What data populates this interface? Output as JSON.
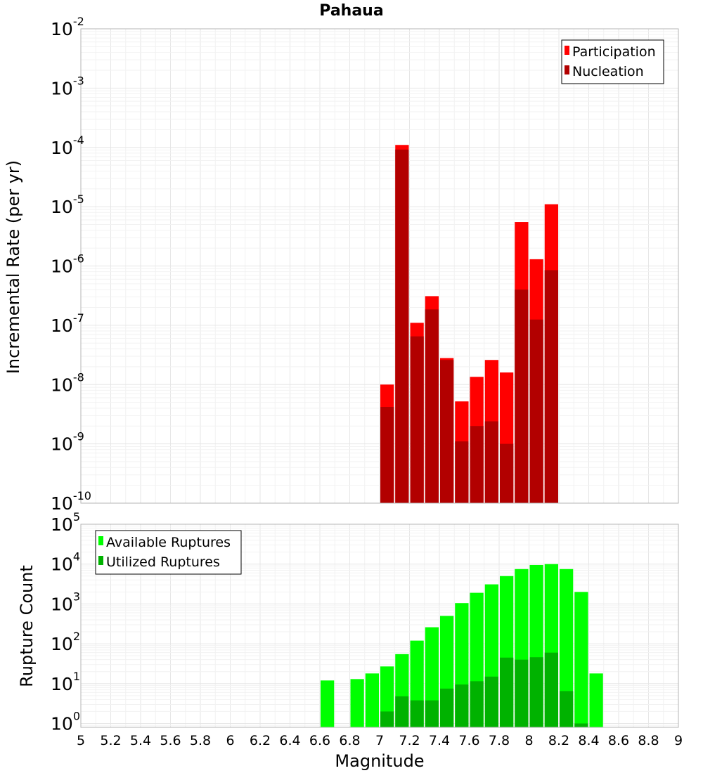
{
  "chart_data": [
    {
      "type": "bar",
      "title": "Pahaua",
      "ylabel": "Incremental Rate (per yr)",
      "xlabel": "",
      "yscale": "log",
      "ylim": [
        1e-10,
        0.01
      ],
      "xlim": [
        5,
        9
      ],
      "grid": true,
      "legend_position": "top-right",
      "bar_width": 0.1,
      "ytick_labels": [
        {
          "base": "10",
          "exp": "-10"
        },
        {
          "base": "10",
          "exp": "-9"
        },
        {
          "base": "10",
          "exp": "-8"
        },
        {
          "base": "10",
          "exp": "-7"
        },
        {
          "base": "10",
          "exp": "-6"
        },
        {
          "base": "10",
          "exp": "-5"
        },
        {
          "base": "10",
          "exp": "-4"
        },
        {
          "base": "10",
          "exp": "-3"
        },
        {
          "base": "10",
          "exp": "-2"
        }
      ],
      "series": [
        {
          "name": "Participation",
          "color": "#ff0000",
          "x": [
            7.05,
            7.15,
            7.25,
            7.35,
            7.45,
            7.55,
            7.65,
            7.75,
            7.85,
            7.95,
            8.05,
            8.15
          ],
          "values": [
            1e-08,
            0.00011,
            1.1e-07,
            3.1e-07,
            2.8e-08,
            5.2e-09,
            1.35e-08,
            2.6e-08,
            1.6e-08,
            5.5e-06,
            1.3e-06,
            1.1e-05
          ]
        },
        {
          "name": "Nucleation",
          "color": "#b20000",
          "x": [
            7.05,
            7.15,
            7.25,
            7.35,
            7.45,
            7.55,
            7.65,
            7.75,
            7.85,
            7.95,
            8.05,
            8.15
          ],
          "values": [
            4.2e-09,
            9.2e-05,
            6.5e-08,
            1.85e-07,
            2.6e-08,
            1.1e-09,
            2e-09,
            2.4e-09,
            1e-09,
            4e-07,
            1.25e-07,
            8.5e-07
          ]
        }
      ]
    },
    {
      "type": "bar",
      "ylabel": "Rupture Count",
      "xlabel": "Magnitude",
      "yscale": "log",
      "ylim": [
        0.8,
        100000
      ],
      "xlim": [
        5,
        9
      ],
      "grid": true,
      "legend_position": "top-left",
      "bar_width": 0.1,
      "xticks": [
        "5",
        "5.2",
        "5.4",
        "5.6",
        "5.8",
        "6",
        "6.2",
        "6.4",
        "6.6",
        "6.8",
        "7",
        "7.2",
        "7.4",
        "7.6",
        "7.8",
        "8",
        "8.2",
        "8.4",
        "8.6",
        "8.8",
        "9"
      ],
      "ytick_labels": [
        {
          "base": "10",
          "exp": "0"
        },
        {
          "base": "10",
          "exp": "1"
        },
        {
          "base": "10",
          "exp": "2"
        },
        {
          "base": "10",
          "exp": "3"
        },
        {
          "base": "10",
          "exp": "4"
        },
        {
          "base": "10",
          "exp": "5"
        }
      ],
      "series": [
        {
          "name": "Available Ruptures",
          "color": "#00ff00",
          "x": [
            6.65,
            6.85,
            6.95,
            7.05,
            7.15,
            7.25,
            7.35,
            7.45,
            7.55,
            7.65,
            7.75,
            7.85,
            7.95,
            8.05,
            8.15,
            8.25,
            8.35,
            8.45
          ],
          "values": [
            12,
            13,
            18,
            27,
            55,
            120,
            260,
            500,
            1050,
            1900,
            3100,
            5000,
            7500,
            9500,
            10000,
            7500,
            2000,
            18
          ]
        },
        {
          "name": "Utilized Ruptures",
          "color": "#00b200",
          "x": [
            7.05,
            7.15,
            7.25,
            7.35,
            7.45,
            7.55,
            7.65,
            7.75,
            7.85,
            7.95,
            8.05,
            8.15,
            8.25,
            8.35
          ],
          "values": [
            2,
            4.8,
            3.8,
            3.8,
            7.5,
            9.5,
            11.5,
            15,
            45,
            40,
            46,
            60,
            6.5,
            1
          ]
        }
      ]
    }
  ]
}
